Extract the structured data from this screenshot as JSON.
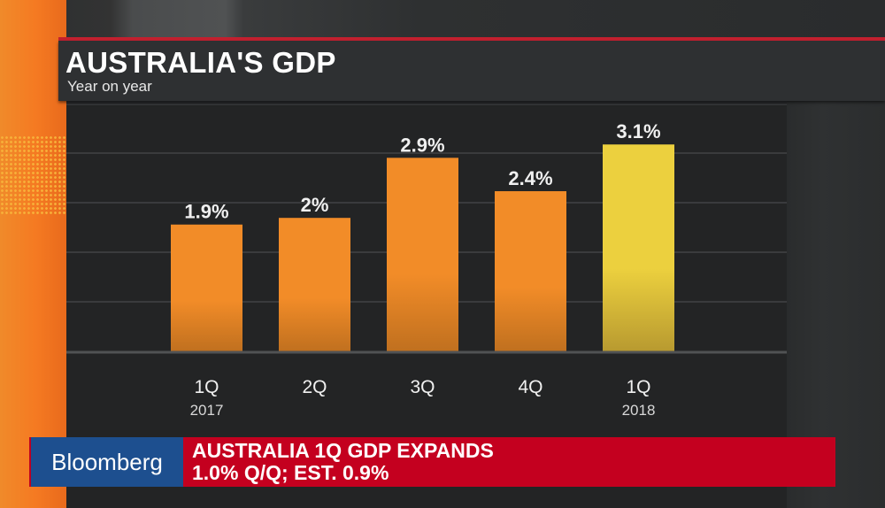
{
  "header": {
    "title": "AUSTRALIA'S GDP",
    "subtitle": "Year on year"
  },
  "chart_data": {
    "type": "bar",
    "title": "AUSTRALIA'S GDP",
    "subtitle": "Year on year",
    "categories": [
      "1Q",
      "2Q",
      "3Q",
      "4Q",
      "1Q"
    ],
    "category_years": [
      "2017",
      "",
      "",
      "",
      "2018"
    ],
    "values": [
      1.9,
      2.0,
      2.9,
      2.4,
      3.1
    ],
    "data_labels": [
      "1.9%",
      "2%",
      "2.9%",
      "2.4%",
      "3.1%"
    ],
    "ylim": [
      0,
      3.7
    ],
    "grid": true,
    "colors": {
      "bar": "#f28c28",
      "highlight": "#ecd03e"
    },
    "highlight_index": 4
  },
  "ticker": {
    "brand": "Bloomberg",
    "line1": "AUSTRALIA 1Q GDP EXPANDS",
    "line2": "1.0% Q/Q; EST. 0.9%"
  }
}
